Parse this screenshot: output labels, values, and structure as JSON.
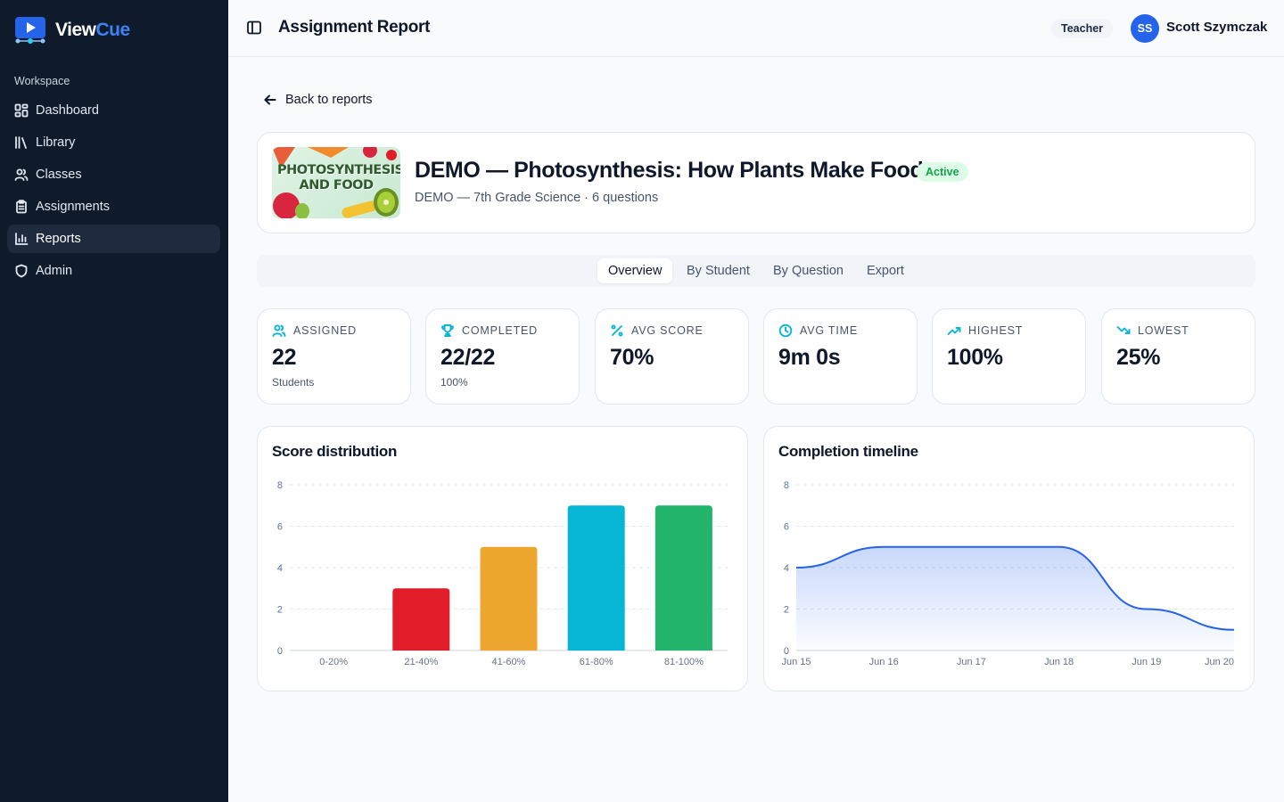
{
  "brand": {
    "name_part1": "View",
    "name_part2": "Cue"
  },
  "sidebar": {
    "section_label": "Workspace",
    "items": [
      {
        "label": "Dashboard",
        "icon": "dashboard-icon"
      },
      {
        "label": "Library",
        "icon": "library-icon"
      },
      {
        "label": "Classes",
        "icon": "users-icon"
      },
      {
        "label": "Assignments",
        "icon": "clipboard-icon"
      },
      {
        "label": "Reports",
        "icon": "bar-chart-icon",
        "active": true
      },
      {
        "label": "Admin",
        "icon": "shield-icon"
      }
    ]
  },
  "header": {
    "title": "Assignment Report",
    "role": "Teacher",
    "user_initials": "SS",
    "user_name": "Scott Szymczak"
  },
  "back_link": "Back to reports",
  "assignment": {
    "thumbnail_text": "PHOTOSYNTHESIS AND FOOD",
    "title": "DEMO — Photosynthesis: How Plants Make Food",
    "status": "Active",
    "subtitle": "DEMO — 7th Grade Science · 6 questions"
  },
  "tabs": [
    {
      "label": "Overview",
      "active": true
    },
    {
      "label": "By Student"
    },
    {
      "label": "By Question"
    },
    {
      "label": "Export"
    }
  ],
  "stats": [
    {
      "label": "ASSIGNED",
      "value": "22",
      "sub": "Students",
      "icon": "users-icon",
      "color": "#06b6d4"
    },
    {
      "label": "COMPLETED",
      "value": "22/22",
      "sub": "100%",
      "icon": "trophy-icon",
      "color": "#06b6d4"
    },
    {
      "label": "AVG SCORE",
      "value": "70%",
      "sub": "",
      "icon": "percent-icon",
      "color": "#06b6d4"
    },
    {
      "label": "AVG TIME",
      "value": "9m 0s",
      "sub": "",
      "icon": "clock-icon",
      "color": "#06b6d4"
    },
    {
      "label": "HIGHEST",
      "value": "100%",
      "sub": "",
      "icon": "trending-up-icon",
      "color": "#06b6d4"
    },
    {
      "label": "LOWEST",
      "value": "25%",
      "sub": "",
      "icon": "trending-down-icon",
      "color": "#06b6d4"
    }
  ],
  "chart_data": [
    {
      "type": "bar",
      "title": "Score distribution",
      "categories": [
        "0-20%",
        "21-40%",
        "41-60%",
        "61-80%",
        "81-100%"
      ],
      "values": [
        0,
        3,
        5,
        7,
        7
      ],
      "colors": [
        "#94a3b8",
        "#e11d2a",
        "#eda72f",
        "#06b6d4",
        "#22b46a"
      ],
      "ylim": [
        0,
        8
      ],
      "yticks": [
        0,
        2,
        4,
        6,
        8
      ],
      "grid": true
    },
    {
      "type": "area",
      "title": "Completion timeline",
      "x": [
        "Jun 15",
        "Jun 16",
        "Jun 17",
        "Jun 18",
        "Jun 19",
        "Jun 20"
      ],
      "values": [
        4,
        5,
        5,
        5,
        2,
        1
      ],
      "color": "#2563eb",
      "ylim": [
        0,
        8
      ],
      "yticks": [
        0,
        2,
        4,
        6,
        8
      ],
      "grid": true
    }
  ]
}
